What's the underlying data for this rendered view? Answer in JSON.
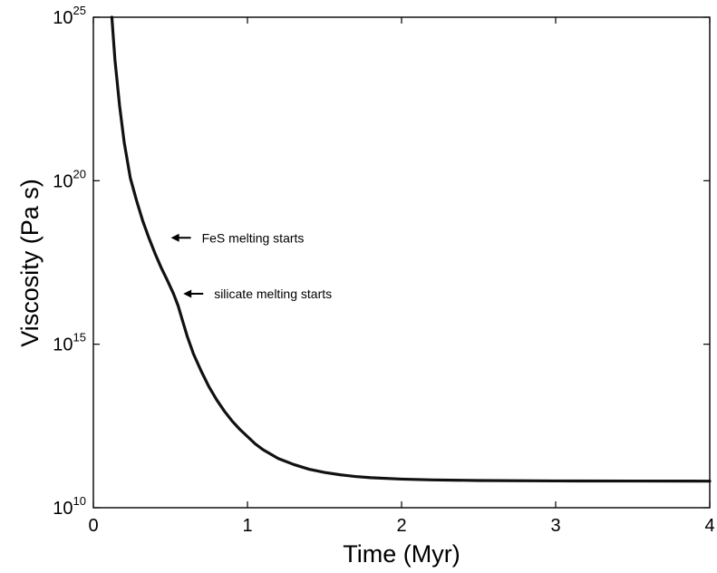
{
  "chart_data": {
    "type": "line",
    "title": "",
    "xlabel": "Time (Myr)",
    "ylabel": "Viscosity (Pa s)",
    "xlim": [
      0,
      4
    ],
    "ylim": [
      10000000000.0,
      1e+25
    ],
    "yscale": "log",
    "grid": false,
    "x_ticks": [
      "0",
      "1",
      "2",
      "3",
      "4"
    ],
    "y_ticks": [
      {
        "base": "10",
        "exp": "10"
      },
      {
        "base": "10",
        "exp": "15"
      },
      {
        "base": "10",
        "exp": "20"
      },
      {
        "base": "10",
        "exp": "25"
      }
    ],
    "series": [
      {
        "color": "#111111",
        "x": [
          0.12,
          0.14,
          0.17,
          0.2,
          0.24,
          0.28,
          0.32,
          0.36,
          0.4,
          0.44,
          0.48,
          0.52,
          0.55,
          0.58,
          0.61,
          0.65,
          0.7,
          0.75,
          0.8,
          0.85,
          0.9,
          0.95,
          1.0,
          1.05,
          1.1,
          1.2,
          1.3,
          1.4,
          1.5,
          1.6,
          1.7,
          1.8,
          2.0,
          2.2,
          2.5,
          3.0,
          3.5,
          4.0
        ],
        "y": [
          1e+25,
          5e+23,
          2e+22,
          1.5e+21,
          1.2e+20,
          2.5e+19,
          6e+18,
          1.8e+18,
          6e+17,
          2.2e+17,
          9e+16,
          3.5e+16,
          1.5e+16,
          5000000000000000.0,
          1700000000000000.0,
          500000000000000.0,
          150000000000000.0,
          50000000000000.0,
          20000000000000.0,
          9000000000000.0,
          4500000000000.0,
          2500000000000.0,
          1500000000000.0,
          900000000000.0,
          600000000000.0,
          320000000000.0,
          210000000000.0,
          150000000000.0,
          120000000000.0,
          102000000000.0,
          90000000000.0,
          83000000000.0,
          75000000000.0,
          71000000000.0,
          68000000000.0,
          66000000000.0,
          65500000000.0,
          65000000000.0
        ]
      }
    ],
    "annotations": [
      {
        "text": "FeS melting starts",
        "x": 0.48,
        "y": 1.8e+18
      },
      {
        "text": "silicate melting starts",
        "x": 0.56,
        "y": 3.5e+16
      }
    ]
  }
}
